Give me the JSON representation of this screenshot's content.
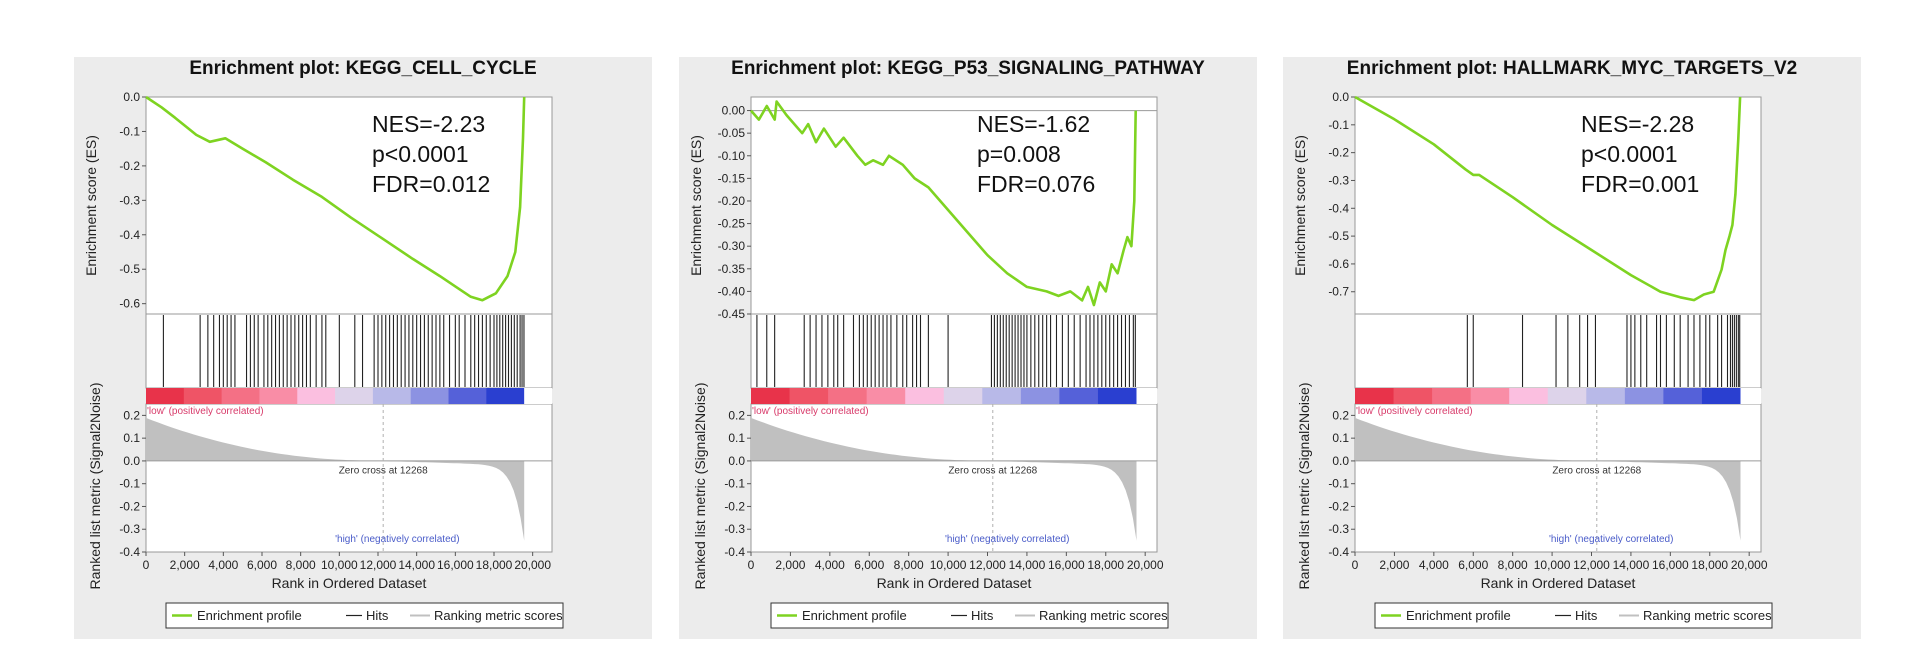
{
  "chart_data": [
    {
      "type": "line",
      "title": "Enrichment plot: KEGG_CELL_CYCLE",
      "stats": [
        "NES=-2.23",
        "p<0.0001",
        "FDR=0.012"
      ],
      "es_ylabel": "Enrichment score (ES)",
      "es_yticks": [
        "0.0",
        "-0.1",
        "-0.2",
        "-0.3",
        "-0.4",
        "-0.5",
        "-0.6"
      ],
      "es_tick_values": [
        0.0,
        -0.1,
        -0.2,
        -0.3,
        -0.4,
        -0.5,
        -0.6
      ],
      "es_ylim": [
        -0.63,
        0.0
      ],
      "es_profile": [
        [
          0,
          0
        ],
        [
          800,
          -0.03
        ],
        [
          1500,
          -0.06
        ],
        [
          2600,
          -0.11
        ],
        [
          3300,
          -0.13
        ],
        [
          4100,
          -0.12
        ],
        [
          5000,
          -0.15
        ],
        [
          6200,
          -0.19
        ],
        [
          7600,
          -0.24
        ],
        [
          9100,
          -0.29
        ],
        [
          10600,
          -0.35
        ],
        [
          12200,
          -0.41
        ],
        [
          13800,
          -0.47
        ],
        [
          15200,
          -0.52
        ],
        [
          16000,
          -0.55
        ],
        [
          16800,
          -0.58
        ],
        [
          17400,
          -0.59
        ],
        [
          18100,
          -0.57
        ],
        [
          18700,
          -0.52
        ],
        [
          19100,
          -0.45
        ],
        [
          19350,
          -0.32
        ],
        [
          19500,
          -0.12
        ],
        [
          19560,
          0.0
        ]
      ],
      "hits": [
        900,
        2800,
        3200,
        3500,
        3800,
        4000,
        4200,
        4400,
        4600,
        5200,
        5400,
        5600,
        5800,
        6100,
        6300,
        6500,
        6700,
        6900,
        7100,
        7300,
        7500,
        7700,
        7900,
        8100,
        8300,
        8500,
        8800,
        9100,
        9300,
        10000,
        10800,
        11200,
        11800,
        12000,
        12200,
        12400,
        12600,
        12800,
        13000,
        13200,
        13400,
        13600,
        13800,
        14000,
        14200,
        14400,
        14600,
        14800,
        15000,
        15200,
        15400,
        15700,
        16000,
        16200,
        16500,
        16800,
        17000,
        17200,
        17400,
        17600,
        17800,
        18000,
        18150,
        18300,
        18450,
        18600,
        18750,
        18900,
        19050,
        19200,
        19350,
        19450,
        19550
      ],
      "heat_colors": [
        "#e8334a",
        "#ef5466",
        "#f47085",
        "#f98da6",
        "#fbbfe0",
        "#ddd3ea",
        "#b8b9e8",
        "#8c92e2",
        "#5561d9",
        "#2a3fd0"
      ],
      "zero_cross_label": "Zero cross at 12268",
      "zero_cross": 12268,
      "rank_ylabel": "Ranked list metric (Signal2Noise)",
      "rank_yticks": [
        "0.2",
        "0.1",
        "0.0",
        "-0.1",
        "-0.2",
        "-0.3",
        "-0.4"
      ],
      "rank_tick_values": [
        0.2,
        0.1,
        0.0,
        -0.1,
        -0.2,
        -0.3,
        -0.4
      ],
      "rank_ylim": [
        -0.4,
        0.25
      ],
      "label_low": "'low' (positively correlated)",
      "label_high": "'high' (negatively correlated)",
      "xlabel": "Rank in Ordered Dataset",
      "xticks": [
        "0",
        "2,000",
        "4,000",
        "6,000",
        "8,000",
        "10,000",
        "12,000",
        "14,000",
        "16,000",
        "18,000",
        "20,000"
      ],
      "xtick_values": [
        0,
        2000,
        4000,
        6000,
        8000,
        10000,
        12000,
        14000,
        16000,
        18000,
        20000
      ],
      "xlim": [
        0,
        21000
      ],
      "n_genes": 19560,
      "legend": [
        "Enrichment profile",
        "Hits",
        "Ranking metric scores"
      ]
    },
    {
      "type": "line",
      "title": "Enrichment plot: KEGG_P53_SIGNALING_PATHWAY",
      "stats": [
        "NES=-1.62",
        "p=0.008",
        "FDR=0.076"
      ],
      "es_ylabel": "Enrichment score (ES)",
      "es_yticks": [
        "0.00",
        "-0.05",
        "-0.10",
        "-0.15",
        "-0.20",
        "-0.25",
        "-0.30",
        "-0.35",
        "-0.40",
        "-0.45"
      ],
      "es_tick_values": [
        0.0,
        -0.05,
        -0.1,
        -0.15,
        -0.2,
        -0.25,
        -0.3,
        -0.35,
        -0.4,
        -0.45
      ],
      "es_ylim": [
        -0.45,
        0.03
      ],
      "es_profile": [
        [
          0,
          0
        ],
        [
          400,
          -0.02
        ],
        [
          800,
          0.01
        ],
        [
          1200,
          -0.02
        ],
        [
          1300,
          0.02
        ],
        [
          1800,
          -0.01
        ],
        [
          2600,
          -0.05
        ],
        [
          2900,
          -0.03
        ],
        [
          3300,
          -0.07
        ],
        [
          3700,
          -0.04
        ],
        [
          4300,
          -0.08
        ],
        [
          4700,
          -0.06
        ],
        [
          5400,
          -0.1
        ],
        [
          5800,
          -0.12
        ],
        [
          6200,
          -0.11
        ],
        [
          6700,
          -0.12
        ],
        [
          7000,
          -0.1
        ],
        [
          7700,
          -0.12
        ],
        [
          8300,
          -0.15
        ],
        [
          9000,
          -0.17
        ],
        [
          10000,
          -0.22
        ],
        [
          11000,
          -0.27
        ],
        [
          12000,
          -0.32
        ],
        [
          13000,
          -0.36
        ],
        [
          14000,
          -0.39
        ],
        [
          15000,
          -0.4
        ],
        [
          15600,
          -0.41
        ],
        [
          16200,
          -0.4
        ],
        [
          16800,
          -0.42
        ],
        [
          17100,
          -0.39
        ],
        [
          17400,
          -0.43
        ],
        [
          17700,
          -0.38
        ],
        [
          18000,
          -0.4
        ],
        [
          18300,
          -0.34
        ],
        [
          18600,
          -0.36
        ],
        [
          18900,
          -0.31
        ],
        [
          19100,
          -0.28
        ],
        [
          19300,
          -0.3
        ],
        [
          19450,
          -0.2
        ],
        [
          19520,
          0.0
        ]
      ],
      "hits": [
        300,
        800,
        1200,
        2700,
        3000,
        3300,
        3600,
        3900,
        4200,
        4400,
        4700,
        5200,
        5500,
        5700,
        5900,
        6100,
        6300,
        6500,
        6700,
        6900,
        7100,
        7400,
        7700,
        7900,
        8200,
        8400,
        8600,
        9000,
        10000,
        12200,
        12350,
        12500,
        12650,
        12800,
        12950,
        13100,
        13250,
        13400,
        13550,
        13700,
        13850,
        14000,
        14200,
        14400,
        14600,
        14800,
        15000,
        15200,
        15500,
        15800,
        16100,
        16400,
        16700,
        17000,
        17200,
        17400,
        17600,
        17800,
        18000,
        18200,
        18400,
        18600,
        18800,
        19000,
        19200,
        19400,
        19500
      ],
      "heat_colors": [
        "#e8334a",
        "#ef5466",
        "#f47085",
        "#f98da6",
        "#fbbfe0",
        "#ddd3ea",
        "#b8b9e8",
        "#8c92e2",
        "#5561d9",
        "#2a3fd0"
      ],
      "zero_cross_label": "Zero cross at 12268",
      "zero_cross": 12268,
      "rank_ylabel": "Ranked list metric (Signal2Noise)",
      "rank_yticks": [
        "0.2",
        "0.1",
        "0.0",
        "-0.1",
        "-0.2",
        "-0.3",
        "-0.4"
      ],
      "rank_tick_values": [
        0.2,
        0.1,
        0.0,
        -0.1,
        -0.2,
        -0.3,
        -0.4
      ],
      "rank_ylim": [
        -0.4,
        0.25
      ],
      "label_low": "'low' (positively correlated)",
      "label_high": "'high' (negatively correlated)",
      "xlabel": "Rank in Ordered Dataset",
      "xticks": [
        "0",
        "2,000",
        "4,000",
        "6,000",
        "8,000",
        "10,000",
        "12,000",
        "14,000",
        "16,000",
        "18,000",
        "20,000"
      ],
      "xtick_values": [
        0,
        2000,
        4000,
        6000,
        8000,
        10000,
        12000,
        14000,
        16000,
        18000,
        20000
      ],
      "xlim": [
        0,
        20600
      ],
      "n_genes": 19560,
      "legend": [
        "Enrichment profile",
        "Hits",
        "Ranking metric scores"
      ]
    },
    {
      "type": "line",
      "title": "Enrichment plot: HALLMARK_MYC_TARGETS_V2",
      "stats": [
        "NES=-2.28",
        "p<0.0001",
        "FDR=0.001"
      ],
      "es_ylabel": "Enrichment score (ES)",
      "es_yticks": [
        "0.0",
        "-0.1",
        "-0.2",
        "-0.3",
        "-0.4",
        "-0.5",
        "-0.6",
        "-0.7"
      ],
      "es_tick_values": [
        0.0,
        -0.1,
        -0.2,
        -0.3,
        -0.4,
        -0.5,
        -0.6,
        -0.7
      ],
      "es_ylim": [
        -0.78,
        0.0
      ],
      "es_profile": [
        [
          0,
          0
        ],
        [
          2000,
          -0.08
        ],
        [
          4000,
          -0.17
        ],
        [
          5600,
          -0.26
        ],
        [
          6000,
          -0.28
        ],
        [
          6300,
          -0.28
        ],
        [
          8000,
          -0.36
        ],
        [
          10000,
          -0.46
        ],
        [
          12000,
          -0.55
        ],
        [
          14000,
          -0.64
        ],
        [
          15500,
          -0.7
        ],
        [
          16500,
          -0.72
        ],
        [
          17200,
          -0.73
        ],
        [
          17700,
          -0.71
        ],
        [
          18200,
          -0.7
        ],
        [
          18600,
          -0.62
        ],
        [
          18800,
          -0.55
        ],
        [
          19000,
          -0.5
        ],
        [
          19150,
          -0.46
        ],
        [
          19300,
          -0.35
        ],
        [
          19450,
          -0.15
        ],
        [
          19540,
          0.0
        ]
      ],
      "hits": [
        5700,
        6000,
        8500,
        10200,
        10800,
        11400,
        11800,
        12200,
        13800,
        14000,
        14200,
        14500,
        14800,
        15300,
        15500,
        15800,
        16200,
        16500,
        16900,
        17200,
        17500,
        17800,
        18000,
        18400,
        18600,
        18900,
        19050,
        19150,
        19250,
        19350,
        19450,
        19520
      ],
      "heat_colors": [
        "#e8334a",
        "#ef5466",
        "#f47085",
        "#f98da6",
        "#fbbfe0",
        "#ddd3ea",
        "#b8b9e8",
        "#8c92e2",
        "#5561d9",
        "#2a3fd0"
      ],
      "zero_cross_label": "Zero cross at 12268",
      "zero_cross": 12268,
      "rank_ylabel": "Ranked list metric (Signal2Noise)",
      "rank_yticks": [
        "0.2",
        "0.1",
        "0.0",
        "-0.1",
        "-0.2",
        "-0.3",
        "-0.4"
      ],
      "rank_tick_values": [
        0.2,
        0.1,
        0.0,
        -0.1,
        -0.2,
        -0.3,
        -0.4
      ],
      "rank_ylim": [
        -0.4,
        0.25
      ],
      "label_low": "'low' (positively correlated)",
      "label_high": "'high' (negatively correlated)",
      "xlabel": "Rank in Ordered Dataset",
      "xticks": [
        "0",
        "2,000",
        "4,000",
        "6,000",
        "8,000",
        "10,000",
        "12,000",
        "14,000",
        "16,000",
        "18,000",
        "20,000"
      ],
      "xtick_values": [
        0,
        2000,
        4000,
        6000,
        8000,
        10000,
        12000,
        14000,
        16000,
        18000,
        20000
      ],
      "xlim": [
        0,
        20600
      ],
      "n_genes": 19560,
      "legend": [
        "Enrichment profile",
        "Hits",
        "Ranking metric scores"
      ]
    }
  ],
  "colors": {
    "profile": "#7ed321",
    "hits": "#222222",
    "ranking": "#c0c0c0",
    "low_label": "#d83a6a",
    "high_label": "#4a5cc9",
    "panel_bg": "#ececec"
  }
}
